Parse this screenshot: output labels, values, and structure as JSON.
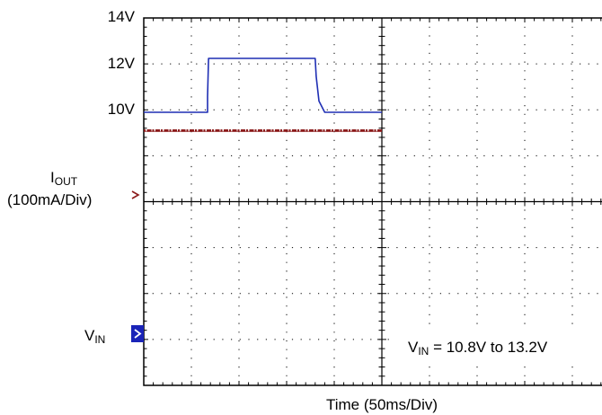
{
  "chart_data": {
    "type": "line",
    "title": "",
    "xlabel": "Time (50ms/Div)",
    "x_unit_per_div": "50ms",
    "x_divisions": 10,
    "y_divisions": 8,
    "grid": true,
    "y_tick_labels": [
      "14V",
      "12V",
      "10V"
    ],
    "iout_label": {
      "main": "I",
      "sub": "OUT",
      "scale": "(100mA/Div)"
    },
    "vin_label": {
      "main": "V",
      "sub": "IN"
    },
    "annotation": {
      "main": "V",
      "sub": "IN",
      "text": " = 10.8V to 13.2V"
    },
    "series": [
      {
        "name": "VIN",
        "color": "#1f2fb4",
        "x_ms": [
          0,
          67,
          67,
          68,
          72,
          180,
          181,
          184,
          190,
          250
        ],
        "y_v": [
          10.8,
          10.8,
          11.5,
          13.2,
          13.2,
          13.2,
          12.4,
          11.3,
          10.8,
          10.8
        ]
      },
      {
        "name": "IOUT",
        "color": "#8b1a1a",
        "x_ms": [
          0,
          250
        ],
        "y_div_above_ref": [
          1.55,
          1.55
        ]
      }
    ],
    "reference_markers": [
      {
        "name": "IOUT",
        "color": "#8b1a1a"
      },
      {
        "name": "VIN",
        "color": "#1f2fb4"
      }
    ]
  }
}
